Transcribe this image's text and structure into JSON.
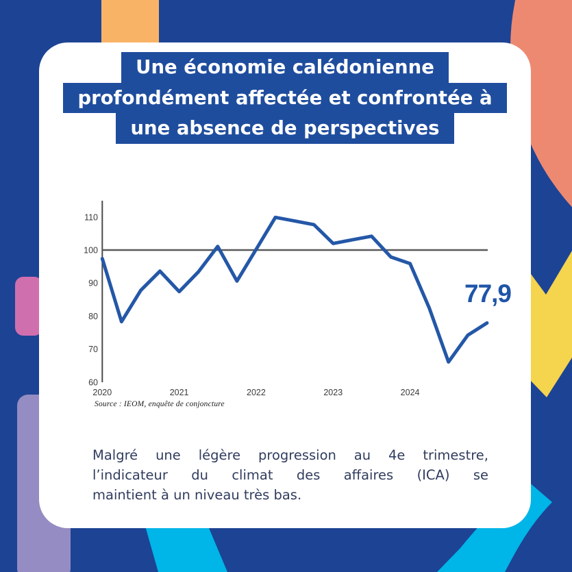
{
  "title": {
    "lines": [
      "Une économie calédonienne",
      "profondément affectée et confrontée à",
      "une absence de perspectives"
    ]
  },
  "chart_data": {
    "type": "line",
    "title": "",
    "series_name": "Indicateur du climat des affaires (ICA)",
    "quarters": [
      "2019-T4",
      "2020-T1",
      "2020-T2",
      "2020-T3",
      "2020-T4",
      "2021-T1",
      "2021-T2",
      "2021-T3",
      "2021-T4",
      "2022-T1",
      "2022-T2",
      "2022-T3",
      "2022-T4",
      "2023-T1",
      "2023-T2",
      "2023-T3",
      "2023-T4",
      "2024-T1",
      "2024-T2",
      "2024-T3",
      "2024-T4"
    ],
    "values": [
      97.4,
      78.3,
      87.8,
      93.6,
      87.4,
      93.4,
      101.1,
      90.6,
      100.2,
      109.9,
      108.8,
      107.7,
      102,
      103.1,
      104.2,
      97.9,
      95.9,
      82.4,
      66.1,
      74.2,
      77.9
    ],
    "x_tick_labels": [
      "2020",
      "2021",
      "2022",
      "2023",
      "2024"
    ],
    "y_ticks": [
      110,
      100,
      90,
      80,
      70,
      60
    ],
    "ylim": [
      60,
      115
    ],
    "reference_line": 100,
    "grid": "off",
    "legend": "none",
    "end_label": "77,9",
    "line_color": "#2457a7",
    "reference_line_color": "#595959",
    "axis_color": "#4a4a4a"
  },
  "source": "Source :  IEOM, enquête de conjoncture",
  "caption": {
    "lines": [
      "Malgré une légère progression au 4e trimestre,",
      "l’indicateur du climat des affaires (ICA) se",
      "maintient à un niveau très bas."
    ]
  },
  "colors": {
    "background": "#1d4394",
    "title_block": "#1f4d9e",
    "card": "#ffffff",
    "decor_orange": "#f9b366",
    "decor_coral": "#ee8971",
    "decor_yellow": "#f5d44e",
    "decor_pink": "#d06fae",
    "decor_purple": "#948cc2",
    "decor_cyan": "#00b5e7",
    "caption_text": "#313c5e",
    "value_label": "#1f55a8"
  }
}
